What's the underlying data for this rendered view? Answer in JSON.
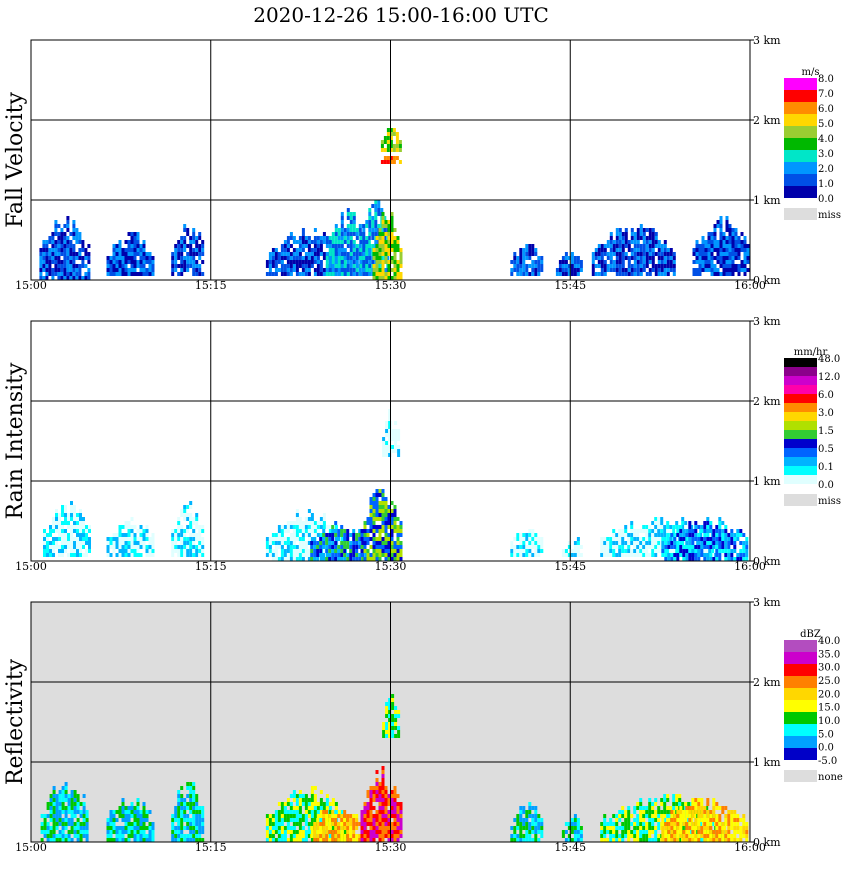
{
  "title": "2020-12-26  15:00-16:00 UTC",
  "colors": {
    "grid": "#000000",
    "missing": "#dddddd",
    "background": "#ffffff"
  },
  "chart_data": [
    {
      "type": "heatmap",
      "name": "fall-velocity",
      "ylabel": "Fall Velocity",
      "xlim": [
        0,
        60
      ],
      "ylim": [
        0,
        3
      ],
      "x_ticks": [
        0,
        15,
        30,
        45,
        60
      ],
      "x_tick_labels": [
        "15:00",
        "15:15",
        "15:30",
        "15:45",
        "16:00"
      ],
      "y_ticks": [
        0,
        1,
        2,
        3
      ],
      "y_tick_labels": [
        "0 km",
        "1 km",
        "2 km",
        "3 km"
      ],
      "background": "#ffffff",
      "colorbar": {
        "unit": "m/s",
        "labels": [
          "8.0",
          "7.0",
          "6.0",
          "5.0",
          "4.0",
          "3.0",
          "2.0",
          "1.0",
          "0.0"
        ],
        "colors": [
          "#ff00ff",
          "#ff0000",
          "#ff8c00",
          "#ffd700",
          "#9acd32",
          "#00b800",
          "#00e6c8",
          "#0096ff",
          "#0050e6",
          "#0000aa"
        ],
        "missing_label": "miss"
      },
      "echo_regions": [
        {
          "t0": 0.7,
          "t1": 4.8,
          "h0": 0.0,
          "h1": 0.85,
          "level": 1
        },
        {
          "t0": 6.3,
          "t1": 10.2,
          "h0": 0.05,
          "h1": 0.65,
          "level": 1
        },
        {
          "t0": 11.7,
          "t1": 14.3,
          "h0": 0.05,
          "h1": 0.85,
          "level": 1
        },
        {
          "t0": 19.6,
          "t1": 26.3,
          "h0": 0.05,
          "h1": 0.7,
          "level": 1
        },
        {
          "t0": 24.6,
          "t1": 28.3,
          "h0": 0.05,
          "h1": 0.95,
          "level": 2
        },
        {
          "t0": 27.4,
          "t1": 29.8,
          "h0": 0.05,
          "h1": 1.15,
          "level": 2
        },
        {
          "t0": 28.5,
          "t1": 30.8,
          "h0": 0.0,
          "h1": 0.95,
          "level": 5
        },
        {
          "t0": 29.2,
          "t1": 30.8,
          "h0": 1.45,
          "h1": 1.6,
          "level": 7
        },
        {
          "t0": 29.2,
          "t1": 30.8,
          "h0": 1.6,
          "h1": 1.95,
          "level": 5
        },
        {
          "t0": 40.0,
          "t1": 42.6,
          "h0": 0.05,
          "h1": 0.55,
          "level": 1
        },
        {
          "t0": 43.8,
          "t1": 46.0,
          "h0": 0.05,
          "h1": 0.4,
          "level": 1
        },
        {
          "t0": 46.8,
          "t1": 53.8,
          "h0": 0.05,
          "h1": 0.75,
          "level": 1
        },
        {
          "t0": 55.2,
          "t1": 59.8,
          "h0": 0.05,
          "h1": 0.85,
          "level": 1
        }
      ]
    },
    {
      "type": "heatmap",
      "name": "rain-intensity",
      "ylabel": "Rain Intensity",
      "xlim": [
        0,
        60
      ],
      "ylim": [
        0,
        3
      ],
      "x_ticks": [
        0,
        15,
        30,
        45,
        60
      ],
      "x_tick_labels": [
        "15:00",
        "15:15",
        "15:30",
        "15:45",
        "16:00"
      ],
      "y_ticks": [
        0,
        1,
        2,
        3
      ],
      "y_tick_labels": [
        "0 km",
        "1 km",
        "2 km",
        "3 km"
      ],
      "background": "#ffffff",
      "colorbar": {
        "unit": "mm/hr",
        "labels": [
          "48.0",
          "12.0",
          "6.0",
          "3.0",
          "1.5",
          "0.5",
          "0.1",
          "0.0"
        ],
        "colors": [
          "#000000",
          "#8b008b",
          "#cc00cc",
          "#ff00aa",
          "#ff0000",
          "#ff8c00",
          "#ffd700",
          "#b0e000",
          "#33cc33",
          "#0000cc",
          "#0064ff",
          "#00b4ff",
          "#00ffff",
          "#e0ffff"
        ],
        "missing_label": "miss"
      },
      "echo_regions": [
        {
          "t0": 1.0,
          "t1": 5.0,
          "h0": 0.05,
          "h1": 0.8,
          "level": 0
        },
        {
          "t0": 6.3,
          "t1": 10.2,
          "h0": 0.05,
          "h1": 0.6,
          "level": 0
        },
        {
          "t0": 11.7,
          "t1": 14.3,
          "h0": 0.05,
          "h1": 0.8,
          "level": 0
        },
        {
          "t0": 19.6,
          "t1": 26.3,
          "h0": 0.0,
          "h1": 0.7,
          "level": 0
        },
        {
          "t0": 23.3,
          "t1": 28.0,
          "h0": 0.0,
          "h1": 0.55,
          "level": 3
        },
        {
          "t0": 27.5,
          "t1": 30.8,
          "h0": 0.0,
          "h1": 1.0,
          "level": 4
        },
        {
          "t0": 29.3,
          "t1": 30.7,
          "h0": 1.3,
          "h1": 1.95,
          "level": 0
        },
        {
          "t0": 40.0,
          "t1": 42.6,
          "h0": 0.05,
          "h1": 0.5,
          "level": 0
        },
        {
          "t0": 44.3,
          "t1": 46.0,
          "h0": 0.05,
          "h1": 0.35,
          "level": 0
        },
        {
          "t0": 47.5,
          "t1": 58.0,
          "h0": 0.05,
          "h1": 0.6,
          "level": 0
        },
        {
          "t0": 52.6,
          "t1": 59.8,
          "h0": 0.0,
          "h1": 0.6,
          "level": 2
        }
      ]
    },
    {
      "type": "heatmap",
      "name": "reflectivity",
      "ylabel": "Reflectivity",
      "xlim": [
        0,
        60
      ],
      "ylim": [
        0,
        3
      ],
      "x_ticks": [
        0,
        15,
        30,
        45,
        60
      ],
      "x_tick_labels": [
        "15:00",
        "15:15",
        "15:30",
        "15:45",
        "16:00"
      ],
      "y_ticks": [
        0,
        1,
        2,
        3
      ],
      "y_tick_labels": [
        "0 km",
        "1 km",
        "2 km",
        "3 km"
      ],
      "background": "#dddddd",
      "colorbar": {
        "unit": "dBZ",
        "labels": [
          "40.0",
          "35.0",
          "30.0",
          "25.0",
          "20.0",
          "15.0",
          "10.0",
          "5.0",
          "0.0",
          "-5.0"
        ],
        "colors": [
          "#b34dbf",
          "#cc00cc",
          "#ff0000",
          "#ff8000",
          "#ffd700",
          "#ffff00",
          "#00c800",
          "#00ffff",
          "#00a0ff",
          "#0000c8"
        ],
        "missing_label": "none"
      },
      "echo_regions": [
        {
          "t0": 0.8,
          "t1": 4.8,
          "h0": 0.0,
          "h1": 0.85,
          "level": 1
        },
        {
          "t0": 6.3,
          "t1": 10.2,
          "h0": 0.0,
          "h1": 0.65,
          "level": 1
        },
        {
          "t0": 11.7,
          "t1": 14.3,
          "h0": 0.0,
          "h1": 0.85,
          "level": 1
        },
        {
          "t0": 19.6,
          "t1": 26.3,
          "h0": 0.0,
          "h1": 0.75,
          "level": 2
        },
        {
          "t0": 23.3,
          "t1": 28.0,
          "h0": 0.0,
          "h1": 0.5,
          "level": 4
        },
        {
          "t0": 27.5,
          "t1": 30.8,
          "h0": 0.0,
          "h1": 1.0,
          "level": 6
        },
        {
          "t0": 29.3,
          "t1": 30.7,
          "h0": 1.3,
          "h1": 1.95,
          "level": 2
        },
        {
          "t0": 40.0,
          "t1": 42.6,
          "h0": 0.0,
          "h1": 0.55,
          "level": 1
        },
        {
          "t0": 44.3,
          "t1": 46.0,
          "h0": 0.0,
          "h1": 0.4,
          "level": 1
        },
        {
          "t0": 47.5,
          "t1": 58.0,
          "h0": 0.0,
          "h1": 0.65,
          "level": 2
        },
        {
          "t0": 52.6,
          "t1": 59.8,
          "h0": 0.0,
          "h1": 0.6,
          "level": 4
        }
      ]
    }
  ]
}
